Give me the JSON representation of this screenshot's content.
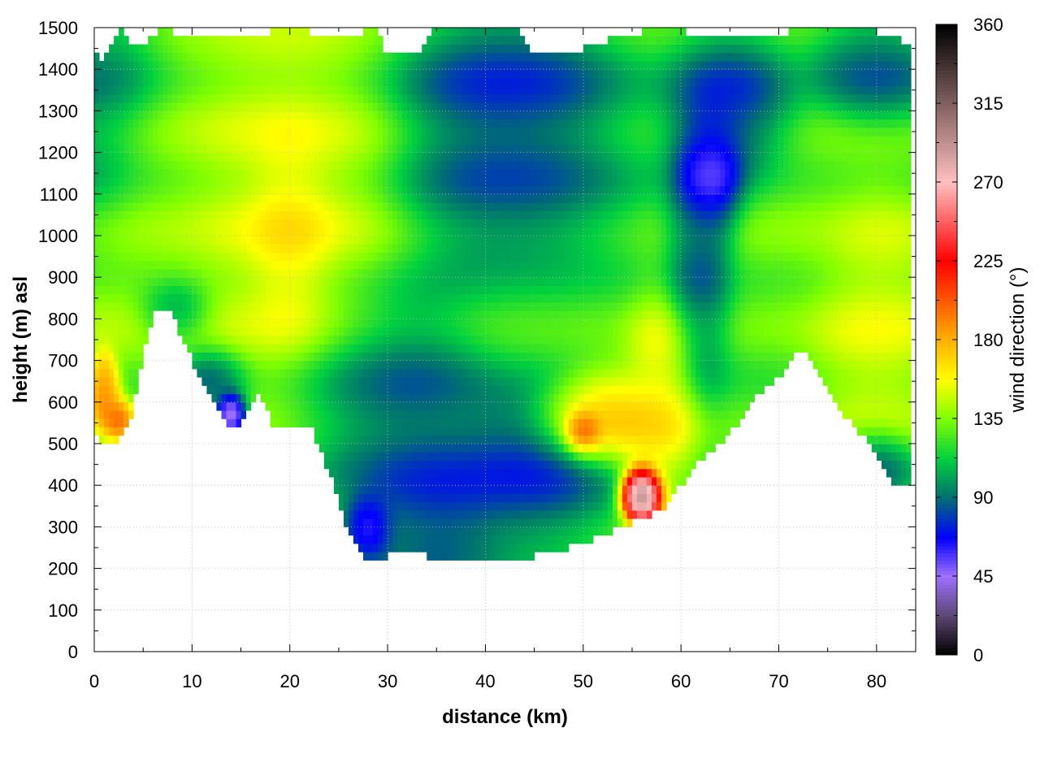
{
  "chart_data": {
    "type": "heatmap",
    "title": "",
    "xlabel": "distance (km)",
    "ylabel": "height (m) asl",
    "colorbar_label": "wind direction (°)",
    "xlim": [
      0,
      84
    ],
    "ylim": [
      0,
      1500
    ],
    "x_ticks": [
      0,
      10,
      20,
      30,
      40,
      50,
      60,
      70,
      80
    ],
    "y_ticks": [
      0,
      100,
      200,
      300,
      400,
      500,
      600,
      700,
      800,
      900,
      1000,
      1100,
      1200,
      1300,
      1400,
      1500
    ],
    "colorbar_range": [
      0,
      360
    ],
    "colorbar_ticks": [
      0,
      45,
      90,
      135,
      180,
      225,
      270,
      315,
      360
    ],
    "grid": true,
    "colormap": [
      {
        "value": 0,
        "color": "#000000"
      },
      {
        "value": 22,
        "color": "#5a4670"
      },
      {
        "value": 45,
        "color": "#a070ff"
      },
      {
        "value": 67,
        "color": "#0000ff"
      },
      {
        "value": 90,
        "color": "#007070"
      },
      {
        "value": 112,
        "color": "#00d040"
      },
      {
        "value": 135,
        "color": "#80ff00"
      },
      {
        "value": 157,
        "color": "#ffff00"
      },
      {
        "value": 180,
        "color": "#ffb000"
      },
      {
        "value": 225,
        "color": "#ff0000"
      },
      {
        "value": 270,
        "color": "#ffc0c0"
      },
      {
        "value": 315,
        "color": "#806060"
      },
      {
        "value": 360,
        "color": "#000000"
      }
    ],
    "terrain_bottom": [
      [
        0,
        550
      ],
      [
        0.5,
        510
      ],
      [
        2.5,
        505
      ],
      [
        4,
        580
      ],
      [
        5.5,
        770
      ],
      [
        6.5,
        825
      ],
      [
        8,
        810
      ],
      [
        10,
        700
      ],
      [
        12,
        620
      ],
      [
        13.5,
        540
      ],
      [
        14.5,
        530
      ],
      [
        15.5,
        580
      ],
      [
        17,
        620
      ],
      [
        18.5,
        530
      ],
      [
        20,
        540
      ],
      [
        22,
        545
      ],
      [
        24,
        430
      ],
      [
        26,
        280
      ],
      [
        28,
        215
      ],
      [
        30,
        230
      ],
      [
        33,
        235
      ],
      [
        36,
        220
      ],
      [
        40,
        222
      ],
      [
        43,
        218
      ],
      [
        47,
        240
      ],
      [
        52,
        280
      ],
      [
        55,
        310
      ],
      [
        58,
        340
      ],
      [
        60,
        400
      ],
      [
        62,
        460
      ],
      [
        64,
        500
      ],
      [
        66,
        550
      ],
      [
        68,
        620
      ],
      [
        70,
        660
      ],
      [
        72,
        720
      ],
      [
        73,
        720
      ],
      [
        75,
        620
      ],
      [
        77,
        560
      ],
      [
        79,
        510
      ],
      [
        81,
        440
      ],
      [
        82,
        400
      ],
      [
        83.5,
        400
      ]
    ],
    "terrain_top": [
      [
        0,
        1450
      ],
      [
        1,
        1420
      ],
      [
        2.5,
        1500
      ],
      [
        4,
        1450
      ],
      [
        6,
        1480
      ],
      [
        7,
        1500
      ],
      [
        9,
        1480
      ],
      [
        12,
        1490
      ],
      [
        15,
        1480
      ],
      [
        18,
        1490
      ],
      [
        22,
        1490
      ],
      [
        26,
        1480
      ],
      [
        29,
        1500
      ],
      [
        30,
        1430
      ],
      [
        33,
        1430
      ],
      [
        35,
        1500
      ],
      [
        43,
        1500
      ],
      [
        45,
        1430
      ],
      [
        50,
        1450
      ],
      [
        54,
        1480
      ],
      [
        58,
        1500
      ],
      [
        60,
        1500
      ],
      [
        62,
        1470
      ],
      [
        66,
        1490
      ],
      [
        70,
        1480
      ],
      [
        72,
        1500
      ],
      [
        76,
        1490
      ],
      [
        80,
        1490
      ],
      [
        83.5,
        1460
      ]
    ],
    "direction_features": [
      {
        "x": 0,
        "y": 1350,
        "dir": 80,
        "sx": 5,
        "sy": 250,
        "w": 1
      },
      {
        "x": 20,
        "y": 1000,
        "dir": 175,
        "sx": 3,
        "sy": 180,
        "w": 2.2
      },
      {
        "x": 20,
        "y": 1050,
        "dir": 160,
        "sx": 9,
        "sy": 420,
        "w": 1.6
      },
      {
        "x": 6,
        "y": 1050,
        "dir": 138,
        "sx": 5,
        "sy": 220,
        "w": 1
      },
      {
        "x": 3,
        "y": 820,
        "dir": 150,
        "sx": 5,
        "sy": 120,
        "w": 0.8
      },
      {
        "x": 1,
        "y": 630,
        "dir": 205,
        "sx": 1.2,
        "sy": 70,
        "w": 2.5
      },
      {
        "x": 2.5,
        "y": 560,
        "dir": 215,
        "sx": 1.2,
        "sy": 40,
        "w": 1.5
      },
      {
        "x": 14,
        "y": 570,
        "dir": 5,
        "sx": 1.2,
        "sy": 40,
        "w": 2.5
      },
      {
        "x": 12,
        "y": 650,
        "dir": 65,
        "sx": 3,
        "sy": 70,
        "w": 1.2
      },
      {
        "x": 8,
        "y": 820,
        "dir": 70,
        "sx": 3,
        "sy": 60,
        "w": 1.2
      },
      {
        "x": 30,
        "y": 600,
        "dir": 70,
        "sx": 8,
        "sy": 220,
        "w": 1.5
      },
      {
        "x": 35,
        "y": 350,
        "dir": 62,
        "sx": 6,
        "sy": 150,
        "w": 1.5
      },
      {
        "x": 28,
        "y": 300,
        "dir": 25,
        "sx": 2,
        "sy": 60,
        "w": 1.5
      },
      {
        "x": 45,
        "y": 450,
        "dir": 55,
        "sx": 7,
        "sy": 150,
        "w": 1.3
      },
      {
        "x": 42,
        "y": 1100,
        "dir": 72,
        "sx": 9,
        "sy": 160,
        "w": 1.3
      },
      {
        "x": 42,
        "y": 1350,
        "dir": 58,
        "sx": 9,
        "sy": 160,
        "w": 1.3
      },
      {
        "x": 44,
        "y": 800,
        "dir": 120,
        "sx": 6,
        "sy": 120,
        "w": 0.8
      },
      {
        "x": 52,
        "y": 560,
        "dir": 190,
        "sx": 5,
        "sy": 90,
        "w": 2.0
      },
      {
        "x": 50,
        "y": 530,
        "dir": 245,
        "sx": 1.5,
        "sy": 40,
        "w": 2.0
      },
      {
        "x": 56,
        "y": 380,
        "dir": 350,
        "sx": 1.5,
        "sy": 50,
        "w": 2.5
      },
      {
        "x": 58,
        "y": 600,
        "dir": 175,
        "sx": 3,
        "sy": 200,
        "w": 1.2
      },
      {
        "x": 62,
        "y": 950,
        "dir": 75,
        "sx": 2.5,
        "sy": 250,
        "w": 1.5
      },
      {
        "x": 63,
        "y": 1150,
        "dir": 30,
        "sx": 2.5,
        "sy": 120,
        "w": 1.6
      },
      {
        "x": 65,
        "y": 1300,
        "dir": 55,
        "sx": 5,
        "sy": 150,
        "w": 1.2
      },
      {
        "x": 80,
        "y": 800,
        "dir": 160,
        "sx": 5,
        "sy": 250,
        "w": 1.8
      },
      {
        "x": 72,
        "y": 1000,
        "dir": 135,
        "sx": 6,
        "sy": 200,
        "w": 1.0
      },
      {
        "x": 80,
        "y": 450,
        "dir": 72,
        "sx": 3,
        "sy": 70,
        "w": 1.5
      },
      {
        "x": 80,
        "y": 1400,
        "dir": 75,
        "sx": 5,
        "sy": 100,
        "w": 1.5
      }
    ],
    "background_direction": 125
  }
}
